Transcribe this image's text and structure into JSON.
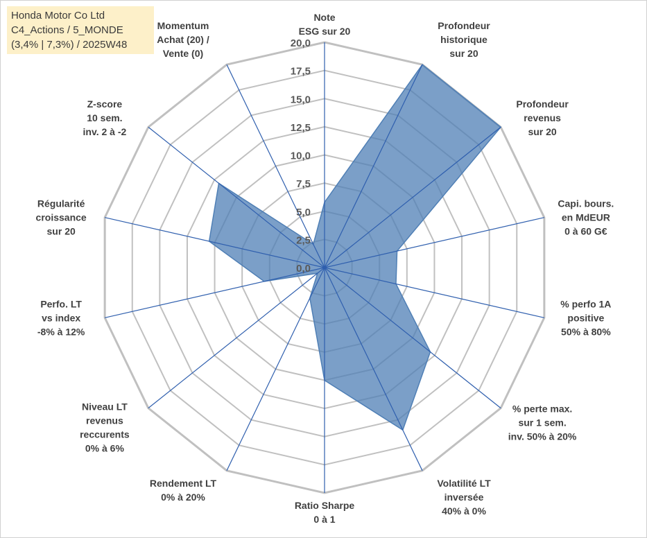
{
  "header": {
    "line1": "Honda Motor Co Ltd",
    "line2": "C4_Actions / 5_MONDE",
    "line3": "(3,4% | 7,3%) / 2025W48"
  },
  "colors": {
    "fill": "#4f7fb5",
    "grid": "#c0c0c0",
    "spoke": "#2f5fae",
    "header_bg": "#fdf0c9"
  },
  "chart_data": {
    "type": "radar",
    "title": "Honda Motor Co Ltd",
    "rmin": 0,
    "rmax": 20,
    "ticks": [
      "0,0",
      "2,5",
      "5,0",
      "7,5",
      "10,0",
      "12,5",
      "15,0",
      "17,5",
      "20,0"
    ],
    "axes": [
      {
        "label": [
          "Note",
          "ESG sur 20"
        ],
        "value": 5.8
      },
      {
        "label": [
          "Profondeur",
          "historique",
          "sur 20"
        ],
        "value": 20.0
      },
      {
        "label": [
          "Profondeur",
          "revenus",
          "sur 20"
        ],
        "value": 20.0
      },
      {
        "label": [
          "Capi. bours.",
          "en MdEUR",
          "0 à 60 G€"
        ],
        "value": 6.6
      },
      {
        "label": [
          "% perfo 1A",
          "positive",
          "50% à 80%"
        ],
        "value": 6.5
      },
      {
        "label": [
          "% perte max.",
          "sur 1 sem.",
          "inv. 50% à 20%"
        ],
        "value": 12.0
      },
      {
        "label": [
          "Volatilité LT",
          "inversée",
          "40% à 0%"
        ],
        "value": 16.0
      },
      {
        "label": [
          "Ratio Sharpe",
          "0 à 1"
        ],
        "value": 10.0
      },
      {
        "label": [
          "Rendement LT",
          "0% à 20%"
        ],
        "value": 3.0
      },
      {
        "label": [
          "Niveau LT",
          "revenus",
          "reccurents",
          "0% à 6%"
        ],
        "value": 0.8
      },
      {
        "label": [
          "Perfo. LT",
          "vs index",
          "-8% à 12%"
        ],
        "value": 5.5
      },
      {
        "label": [
          "Régularité",
          "croissance",
          "sur 20"
        ],
        "value": 10.5
      },
      {
        "label": [
          "Z-score",
          "10 sem.",
          "inv. 2 à -2"
        ],
        "value": 12.0
      },
      {
        "label": [
          "Momentum",
          "Achat (20) /",
          "Vente (0)"
        ],
        "value": 2.3
      }
    ]
  }
}
